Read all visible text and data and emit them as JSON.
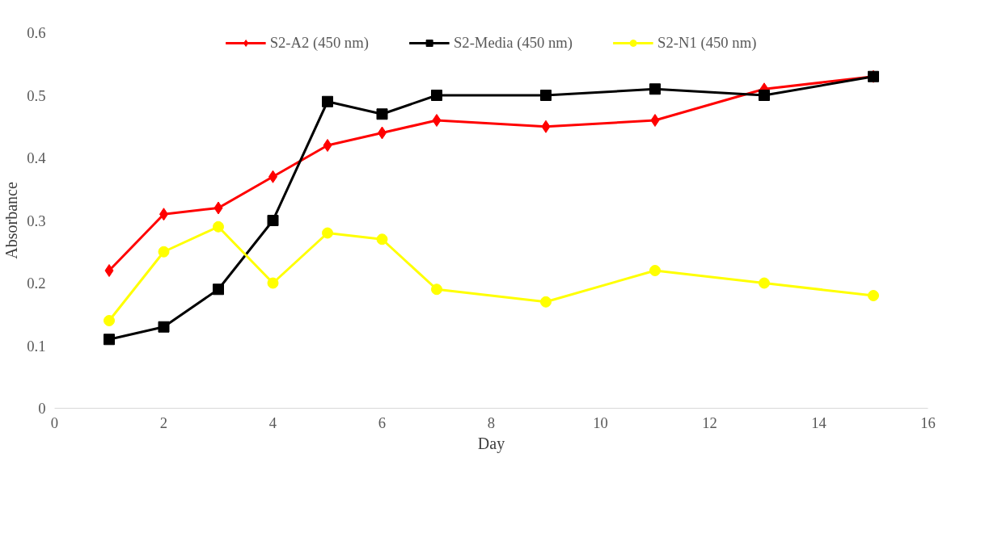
{
  "chart_data": {
    "type": "line",
    "xlabel": "Day",
    "ylabel": "Absorbance",
    "x": [
      1,
      2,
      3,
      4,
      5,
      6,
      7,
      9,
      11,
      13,
      15
    ],
    "xlim": [
      0,
      16
    ],
    "xticks": [
      0,
      2,
      4,
      6,
      8,
      10,
      12,
      14,
      16
    ],
    "ylim": [
      0,
      0.6
    ],
    "yticks": [
      0,
      0.1,
      0.2,
      0.3,
      0.4,
      0.5,
      0.6
    ],
    "grid": false,
    "legend": "top",
    "line_style": "solid",
    "series": [
      {
        "name": "S2-A2 (450 nm)",
        "color": "#ff0000",
        "marker": "diamond",
        "values": [
          0.22,
          0.31,
          0.32,
          0.37,
          0.42,
          0.44,
          0.46,
          0.45,
          0.46,
          0.51,
          0.53
        ]
      },
      {
        "name": "S2-Media (450 nm)",
        "color": "#000000",
        "marker": "square",
        "values": [
          0.11,
          0.13,
          0.19,
          0.3,
          0.49,
          0.47,
          0.5,
          0.5,
          0.51,
          0.5,
          0.53
        ]
      },
      {
        "name": "S2-N1 (450 nm)",
        "color": "#ffff00",
        "marker": "circle",
        "values": [
          0.14,
          0.25,
          0.29,
          0.2,
          0.28,
          0.27,
          0.19,
          0.17,
          0.22,
          0.2,
          0.18
        ]
      }
    ]
  }
}
